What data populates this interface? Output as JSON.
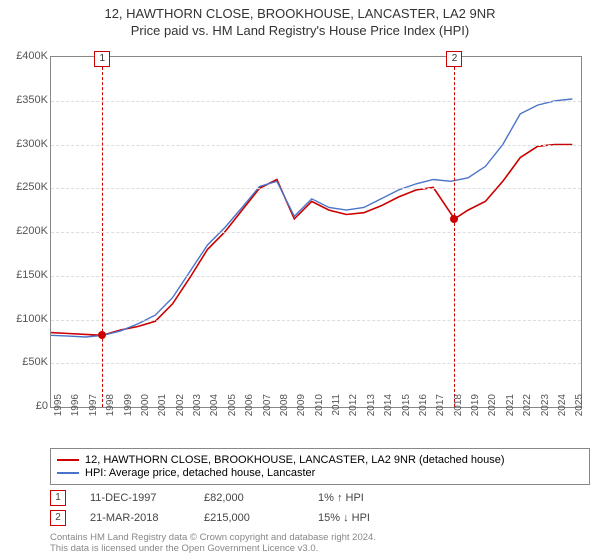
{
  "title": {
    "line1": "12, HAWTHORN CLOSE, BROOKHOUSE, LANCASTER, LA2 9NR",
    "line2": "Price paid vs. HM Land Registry's House Price Index (HPI)"
  },
  "chart": {
    "type": "line",
    "ylim": [
      0,
      400000
    ],
    "ytick_step": 50000,
    "yticks": [
      "£0",
      "£50K",
      "£100K",
      "£150K",
      "£200K",
      "£250K",
      "£300K",
      "£350K",
      "£400K"
    ],
    "xlim": [
      1995,
      2025.5
    ],
    "xticks": [
      "1995",
      "1996",
      "1997",
      "1998",
      "1999",
      "2000",
      "2001",
      "2002",
      "2003",
      "2004",
      "2005",
      "2006",
      "2007",
      "2008",
      "2009",
      "2010",
      "2011",
      "2012",
      "2013",
      "2014",
      "2015",
      "2016",
      "2017",
      "2018",
      "2019",
      "2020",
      "2021",
      "2022",
      "2023",
      "2024",
      "2025"
    ],
    "series": [
      {
        "name": "property",
        "color": "#cc0000",
        "width": 1.6,
        "points": [
          [
            1995,
            85000
          ],
          [
            1996,
            84000
          ],
          [
            1997,
            83000
          ],
          [
            1997.95,
            82000
          ],
          [
            1999,
            88000
          ],
          [
            2000,
            92000
          ],
          [
            2001,
            98000
          ],
          [
            2002,
            118000
          ],
          [
            2003,
            148000
          ],
          [
            2004,
            180000
          ],
          [
            2005,
            200000
          ],
          [
            2006,
            225000
          ],
          [
            2007,
            250000
          ],
          [
            2008,
            260000
          ],
          [
            2009,
            215000
          ],
          [
            2010,
            235000
          ],
          [
            2011,
            225000
          ],
          [
            2012,
            220000
          ],
          [
            2013,
            222000
          ],
          [
            2014,
            230000
          ],
          [
            2015,
            240000
          ],
          [
            2016,
            248000
          ],
          [
            2017,
            251000
          ],
          [
            2018.22,
            215000
          ],
          [
            2019,
            225000
          ],
          [
            2020,
            235000
          ],
          [
            2021,
            258000
          ],
          [
            2022,
            285000
          ],
          [
            2023,
            298000
          ],
          [
            2024,
            300000
          ],
          [
            2025,
            300000
          ]
        ]
      },
      {
        "name": "hpi",
        "color": "#4a74c9",
        "width": 1.4,
        "points": [
          [
            1995,
            82000
          ],
          [
            1996,
            81000
          ],
          [
            1997,
            80000
          ],
          [
            1998,
            82000
          ],
          [
            1999,
            87000
          ],
          [
            2000,
            95000
          ],
          [
            2001,
            105000
          ],
          [
            2002,
            125000
          ],
          [
            2003,
            155000
          ],
          [
            2004,
            185000
          ],
          [
            2005,
            205000
          ],
          [
            2006,
            228000
          ],
          [
            2007,
            252000
          ],
          [
            2008,
            258000
          ],
          [
            2009,
            218000
          ],
          [
            2010,
            238000
          ],
          [
            2011,
            228000
          ],
          [
            2012,
            225000
          ],
          [
            2013,
            228000
          ],
          [
            2014,
            238000
          ],
          [
            2015,
            248000
          ],
          [
            2016,
            255000
          ],
          [
            2017,
            260000
          ],
          [
            2018,
            258000
          ],
          [
            2019,
            262000
          ],
          [
            2020,
            275000
          ],
          [
            2021,
            300000
          ],
          [
            2022,
            335000
          ],
          [
            2023,
            345000
          ],
          [
            2024,
            350000
          ],
          [
            2025,
            352000
          ]
        ]
      }
    ],
    "markers": [
      {
        "id": "1",
        "x": 1997.95,
        "y": 82000,
        "color": "#cc0000"
      },
      {
        "id": "2",
        "x": 2018.22,
        "y": 215000,
        "color": "#cc0000"
      }
    ]
  },
  "legend": {
    "items": [
      {
        "color": "#cc0000",
        "label": "12, HAWTHORN CLOSE, BROOKHOUSE, LANCASTER, LA2 9NR (detached house)"
      },
      {
        "color": "#4a74c9",
        "label": "HPI: Average price, detached house, Lancaster"
      }
    ]
  },
  "events": [
    {
      "marker": "1",
      "color": "#cc0000",
      "date": "11-DEC-1997",
      "price": "£82,000",
      "diff": "1% ↑ HPI"
    },
    {
      "marker": "2",
      "color": "#cc0000",
      "date": "21-MAR-2018",
      "price": "£215,000",
      "diff": "15% ↓ HPI"
    }
  ],
  "footer": {
    "line1": "Contains HM Land Registry data © Crown copyright and database right 2024.",
    "line2": "This data is licensed under the Open Government Licence v3.0."
  }
}
